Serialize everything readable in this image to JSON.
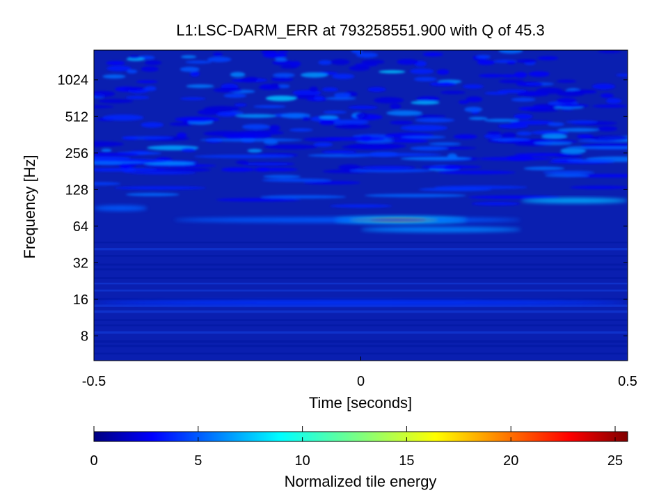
{
  "chart_data": {
    "type": "heatmap",
    "title": "L1:LSC-DARM_ERR at 793258551.900 with Q of 45.3",
    "xlabel": "Time [seconds]",
    "ylabel": "Frequency [Hz]",
    "xlim": [
      -0.5,
      0.5
    ],
    "ylim": [
      5,
      1800
    ],
    "yscale": "log2",
    "xticks": [
      -0.5,
      0,
      0.5
    ],
    "xtick_labels": [
      "-0.5",
      "0",
      "0.5"
    ],
    "yticks": [
      8,
      16,
      32,
      64,
      128,
      256,
      512,
      1024
    ],
    "ytick_labels": [
      "8",
      "16",
      "32",
      "64",
      "128",
      "256",
      "512",
      "1024"
    ],
    "colormap": "jet",
    "colorbar": {
      "label": "Normalized tile energy",
      "range": [
        0,
        25.6
      ],
      "ticks": [
        0,
        5,
        10,
        15,
        20,
        25
      ],
      "tick_labels": [
        "0",
        "5",
        "10",
        "15",
        "20",
        "25"
      ]
    },
    "features": [
      {
        "kind": "chirp",
        "t_start": -0.05,
        "t_end": 0.2,
        "freq_hz": 72,
        "peak_energy": 20
      },
      {
        "kind": "band",
        "t_start": -0.35,
        "t_end": 0.3,
        "freq_hz": 72,
        "energy": 5
      },
      {
        "kind": "band",
        "t_start": 0.0,
        "t_end": 0.3,
        "freq_hz": 60,
        "energy": 6
      },
      {
        "kind": "band",
        "t_start": 0.3,
        "t_end": 0.5,
        "freq_hz": 104,
        "energy": 7
      },
      {
        "kind": "band",
        "t_start": -0.5,
        "t_end": -0.4,
        "freq_hz": 90,
        "energy": 5
      },
      {
        "kind": "band",
        "t_start": -0.5,
        "t_end": 0.5,
        "freq_hz": 15,
        "energy": 4
      }
    ]
  }
}
